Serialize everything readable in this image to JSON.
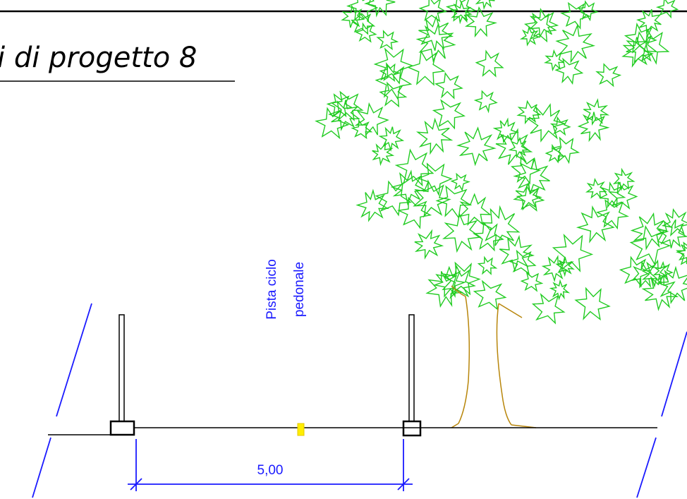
{
  "title": "i di progetto 8",
  "label": {
    "lines": [
      "Pista ciclo",
      "pedonale"
    ]
  },
  "dimension": "5,00"
}
